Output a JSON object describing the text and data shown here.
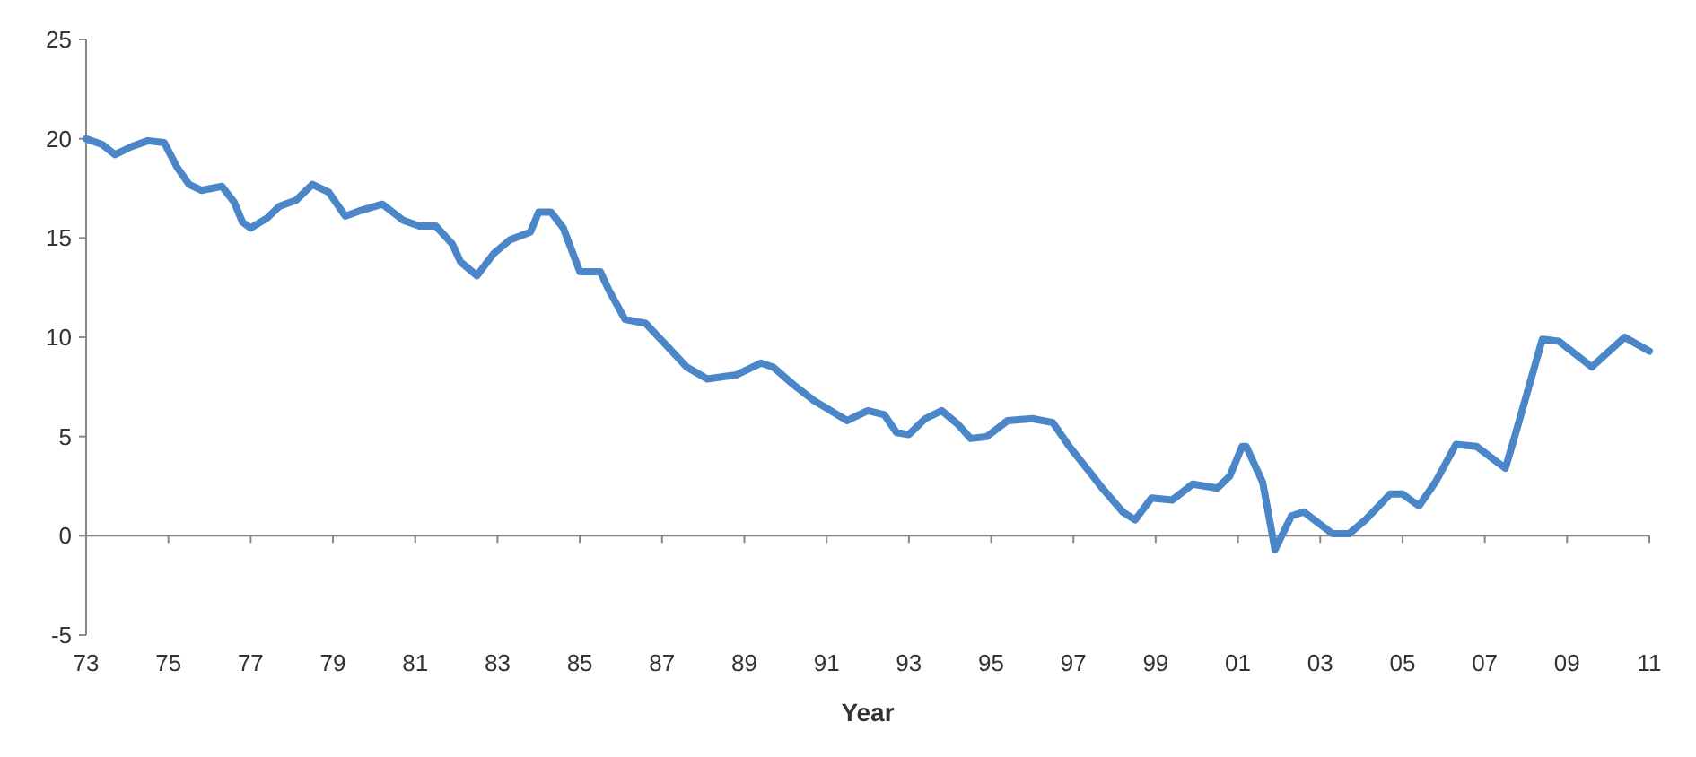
{
  "chart_data": {
    "type": "line",
    "xlabel": "Year",
    "x": [
      1973.0,
      1973.4,
      1973.7,
      1974.1,
      1974.5,
      1974.9,
      1975.2,
      1975.5,
      1975.8,
      1976.3,
      1976.6,
      1976.8,
      1977.0,
      1977.4,
      1977.7,
      1978.1,
      1978.5,
      1978.9,
      1979.3,
      1979.7,
      1980.2,
      1980.7,
      1981.1,
      1981.5,
      1981.9,
      1982.1,
      1982.5,
      1982.9,
      1983.3,
      1983.8,
      1984.0,
      1984.3,
      1984.6,
      1985.0,
      1985.5,
      1985.7,
      1986.1,
      1986.6,
      1987.1,
      1987.6,
      1988.1,
      1988.8,
      1989.4,
      1989.7,
      1990.2,
      1990.7,
      1991.1,
      1991.5,
      1992.0,
      1992.4,
      1992.7,
      1993.0,
      1993.4,
      1993.8,
      1994.2,
      1994.5,
      1994.9,
      1995.4,
      1996.0,
      1996.5,
      1996.9,
      1997.4,
      1997.7,
      1998.2,
      1998.5,
      1998.9,
      1999.4,
      1999.9,
      2000.5,
      2000.8,
      2001.1,
      2001.2,
      2001.6,
      2001.9,
      2002.3,
      2002.6,
      2003.3,
      2003.7,
      2004.1,
      2004.7,
      2005.0,
      2005.4,
      2005.8,
      2006.3,
      2006.8,
      2007.5,
      2007.7,
      2008.4,
      2008.8,
      2009.6,
      2010.4,
      2011.0
    ],
    "series": [
      {
        "color": "#4a86c8",
        "values": [
          20.0,
          19.7,
          19.2,
          19.6,
          19.9,
          19.8,
          18.6,
          17.7,
          17.4,
          17.6,
          16.8,
          15.8,
          15.5,
          16.0,
          16.6,
          16.9,
          17.7,
          17.3,
          16.1,
          16.4,
          16.7,
          15.9,
          15.6,
          15.6,
          14.7,
          13.8,
          13.1,
          14.2,
          14.9,
          15.3,
          16.3,
          16.3,
          15.5,
          13.3,
          13.3,
          12.4,
          10.9,
          10.7,
          9.6,
          8.5,
          7.9,
          8.1,
          8.7,
          8.5,
          7.6,
          6.8,
          6.3,
          5.8,
          6.3,
          6.1,
          5.2,
          5.1,
          5.9,
          6.3,
          5.6,
          4.9,
          5.0,
          5.8,
          5.9,
          5.7,
          4.5,
          3.2,
          2.4,
          1.2,
          0.8,
          1.9,
          1.8,
          2.6,
          2.4,
          3.0,
          4.5,
          4.5,
          2.7,
          -0.7,
          1.0,
          1.2,
          0.1,
          0.1,
          0.8,
          2.1,
          2.1,
          1.5,
          2.7,
          4.6,
          4.5,
          3.4,
          4.8,
          9.9,
          9.8,
          8.5,
          10.0,
          9.3
        ]
      }
    ],
    "xlim": [
      1973,
      2011
    ],
    "xticks": [
      {
        "value": 1973,
        "label": "73"
      },
      {
        "value": 1975,
        "label": "75"
      },
      {
        "value": 1977,
        "label": "77"
      },
      {
        "value": 1979,
        "label": "79"
      },
      {
        "value": 1981,
        "label": "81"
      },
      {
        "value": 1983,
        "label": "83"
      },
      {
        "value": 1985,
        "label": "85"
      },
      {
        "value": 1987,
        "label": "87"
      },
      {
        "value": 1989,
        "label": "89"
      },
      {
        "value": 1991,
        "label": "91"
      },
      {
        "value": 1993,
        "label": "93"
      },
      {
        "value": 1995,
        "label": "95"
      },
      {
        "value": 1997,
        "label": "97"
      },
      {
        "value": 1999,
        "label": "99"
      },
      {
        "value": 2001,
        "label": "01"
      },
      {
        "value": 2003,
        "label": "03"
      },
      {
        "value": 2005,
        "label": "05"
      },
      {
        "value": 2007,
        "label": "07"
      },
      {
        "value": 2009,
        "label": "09"
      },
      {
        "value": 2011,
        "label": "11"
      }
    ],
    "ylim": [
      -5,
      25
    ],
    "yticks": [
      -5,
      0,
      5,
      10,
      15,
      20,
      25
    ],
    "marker": "none",
    "line_style": "solid"
  }
}
